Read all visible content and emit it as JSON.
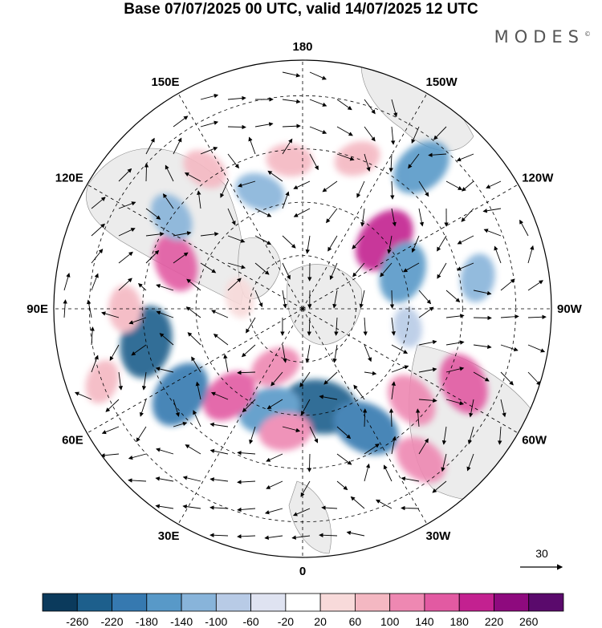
{
  "title": "Base 07/07/2025 00 UTC, valid 14/07/2025 12 UTC",
  "brand": "MODES",
  "brand_mark": "©",
  "longitude_labels": [
    {
      "text": "0",
      "lon": 0
    },
    {
      "text": "30E",
      "lon": 30
    },
    {
      "text": "60E",
      "lon": 60
    },
    {
      "text": "90E",
      "lon": 90
    },
    {
      "text": "120E",
      "lon": 120
    },
    {
      "text": "150E",
      "lon": 150
    },
    {
      "text": "180",
      "lon": 180
    },
    {
      "text": "150W",
      "lon": -150
    },
    {
      "text": "120W",
      "lon": -120
    },
    {
      "text": "90W",
      "lon": -90
    },
    {
      "text": "60W",
      "lon": -60
    },
    {
      "text": "30W",
      "lon": -30
    }
  ],
  "vector_reference": {
    "label": "30"
  },
  "colorbar": {
    "ticks": [
      "-260",
      "-220",
      "-180",
      "-140",
      "-100",
      "-60",
      "-20",
      "20",
      "60",
      "100",
      "140",
      "180",
      "220",
      "260"
    ],
    "colors": [
      "#0b3a5c",
      "#1d5f8c",
      "#3679b0",
      "#5899c8",
      "#88b4da",
      "#b8cbe6",
      "#dfe3f1",
      "#ffffff",
      "#f8dada",
      "#f4b8c2",
      "#ee88b2",
      "#e25aa2",
      "#c32190",
      "#8e0a7e",
      "#5a0a6c"
    ]
  },
  "anomaly_cells": [
    {
      "lon": -10,
      "lat": 62,
      "value": -240
    },
    {
      "lon": 18,
      "lat": 60,
      "value": -170
    },
    {
      "lon": -28,
      "lat": 52,
      "value": -200
    },
    {
      "lon": 40,
      "lat": 58,
      "value": 150
    },
    {
      "lon": 8,
      "lat": 55,
      "value": 120
    },
    {
      "lon": -50,
      "lat": 50,
      "value": 140
    },
    {
      "lon": -38,
      "lat": 36,
      "value": 130
    },
    {
      "lon": -65,
      "lat": 40,
      "value": 170
    },
    {
      "lon": 25,
      "lat": 72,
      "value": 110
    },
    {
      "lon": 55,
      "lat": 48,
      "value": -200
    },
    {
      "lon": 78,
      "lat": 45,
      "value": -220
    },
    {
      "lon": 90,
      "lat": 40,
      "value": 90
    },
    {
      "lon": 110,
      "lat": 52,
      "value": 150
    },
    {
      "lon": 125,
      "lat": 45,
      "value": -110
    },
    {
      "lon": 145,
      "lat": 42,
      "value": 90
    },
    {
      "lon": 160,
      "lat": 55,
      "value": -110
    },
    {
      "lon": -130,
      "lat": 60,
      "value": 200
    },
    {
      "lon": -110,
      "lat": 60,
      "value": -170
    },
    {
      "lon": -100,
      "lat": 40,
      "value": -100
    },
    {
      "lon": -140,
      "lat": 38,
      "value": -170
    },
    {
      "lon": -160,
      "lat": 45,
      "value": 90
    },
    {
      "lon": 175,
      "lat": 48,
      "value": 90
    },
    {
      "lon": -80,
      "lat": 60,
      "value": -60
    },
    {
      "lon": 100,
      "lat": 72,
      "value": 60
    },
    {
      "lon": 70,
      "lat": 30,
      "value": 80
    }
  ]
}
